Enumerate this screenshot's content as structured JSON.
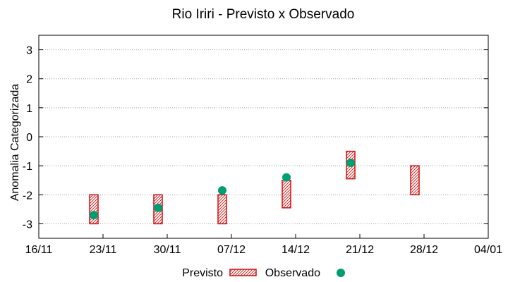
{
  "chart_data": {
    "type": "floating-bar-with-points",
    "title": "Rio Iriri - Previsto x Observado",
    "ylabel": "Anomalia Categorizada",
    "xlabel": "",
    "ylim": [
      -3.5,
      3.5
    ],
    "y_ticks": [
      3,
      2,
      1,
      0,
      -1,
      -2,
      -3
    ],
    "y_tick_labels": [
      "3",
      "2",
      "1",
      "0",
      "-1",
      "-2",
      "-3"
    ],
    "x_range_days": [
      0,
      49
    ],
    "x_ticks": [
      {
        "day": 0,
        "label": "16/11"
      },
      {
        "day": 7,
        "label": "23/11"
      },
      {
        "day": 14,
        "label": "30/11"
      },
      {
        "day": 21,
        "label": "07/12"
      },
      {
        "day": 28,
        "label": "14/12"
      },
      {
        "day": 35,
        "label": "21/12"
      },
      {
        "day": 42,
        "label": "28/12"
      },
      {
        "day": 49,
        "label": "04/01"
      }
    ],
    "grid": true,
    "legend_position": "bottom",
    "series": [
      {
        "name": "Previsto",
        "kind": "range",
        "color": "#d01010",
        "points": [
          {
            "day": 6,
            "low": -3,
            "high": -2
          },
          {
            "day": 13,
            "low": -3,
            "high": -2
          },
          {
            "day": 20,
            "low": -3,
            "high": -2
          },
          {
            "day": 27,
            "low": -2.45,
            "high": -1.5
          },
          {
            "day": 34,
            "low": -1.45,
            "high": -0.5
          },
          {
            "day": 41,
            "low": -2,
            "high": -1
          }
        ]
      },
      {
        "name": "Observado",
        "kind": "point",
        "color": "#009e73",
        "points": [
          {
            "day": 6,
            "value": -2.7
          },
          {
            "day": 13,
            "value": -2.45
          },
          {
            "day": 20,
            "value": -1.85
          },
          {
            "day": 27,
            "value": -1.4
          },
          {
            "day": 34,
            "value": -0.9
          }
        ]
      }
    ]
  }
}
